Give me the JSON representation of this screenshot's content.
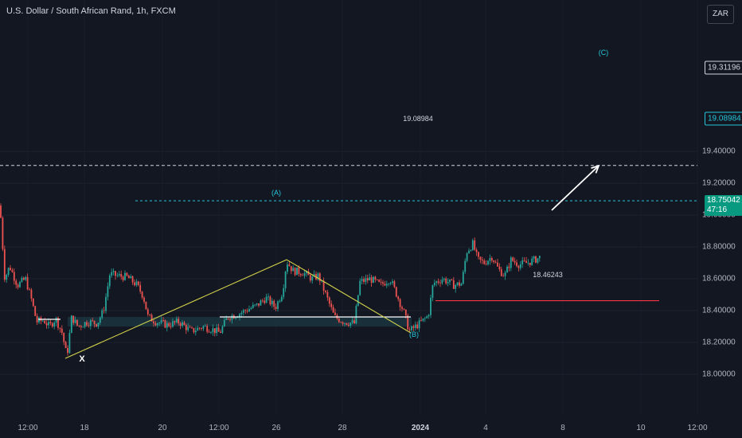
{
  "header": {
    "title": "U.S. Dollar / South African Rand, 1h, FXCM",
    "currency": "ZAR"
  },
  "price_tags": {
    "target_c": "19.31196",
    "target_line": "19.08984",
    "current": "18.75042",
    "countdown": "47:16"
  },
  "chart_data": {
    "type": "candlestick",
    "title": "U.S. Dollar / South African Rand, 1h, FXCM",
    "ylim": [
      17.92,
      19.52
    ],
    "y_ticks": [
      "19.40000",
      "19.20000",
      "19.00000",
      "18.80000",
      "18.60000",
      "18.40000",
      "18.20000",
      "18.00000"
    ],
    "y_tick_values": [
      19.4,
      19.2,
      19.0,
      18.8,
      18.6,
      18.4,
      18.2,
      18.0
    ],
    "x_ticks": [
      "12:00",
      "18",
      "20",
      "12:00",
      "26",
      "28",
      "2024",
      "4",
      "8",
      "10",
      "12:00"
    ],
    "price_path": [
      [
        0,
        19.06
      ],
      [
        6,
        18.6
      ],
      [
        12,
        18.68
      ],
      [
        22,
        18.56
      ],
      [
        32,
        18.6
      ],
      [
        40,
        18.46
      ],
      [
        46,
        18.33
      ],
      [
        55,
        18.34
      ],
      [
        62,
        18.3
      ],
      [
        70,
        18.35
      ],
      [
        78,
        18.26
      ],
      [
        84,
        18.11
      ],
      [
        90,
        18.36
      ],
      [
        98,
        18.3
      ],
      [
        110,
        18.33
      ],
      [
        122,
        18.32
      ],
      [
        130,
        18.4
      ],
      [
        138,
        18.63
      ],
      [
        146,
        18.62
      ],
      [
        160,
        18.61
      ],
      [
        172,
        18.56
      ],
      [
        180,
        18.49
      ],
      [
        186,
        18.36
      ],
      [
        196,
        18.33
      ],
      [
        210,
        18.31
      ],
      [
        225,
        18.33
      ],
      [
        240,
        18.27
      ],
      [
        255,
        18.3
      ],
      [
        268,
        18.28
      ],
      [
        276,
        18.26
      ],
      [
        286,
        18.36
      ],
      [
        300,
        18.38
      ],
      [
        312,
        18.41
      ],
      [
        322,
        18.43
      ],
      [
        334,
        18.48
      ],
      [
        346,
        18.42
      ],
      [
        355,
        18.52
      ],
      [
        360,
        18.71
      ],
      [
        368,
        18.65
      ],
      [
        380,
        18.64
      ],
      [
        392,
        18.6
      ],
      [
        400,
        18.62
      ],
      [
        410,
        18.49
      ],
      [
        420,
        18.36
      ],
      [
        432,
        18.33
      ],
      [
        445,
        18.32
      ],
      [
        452,
        18.58
      ],
      [
        465,
        18.6
      ],
      [
        478,
        18.56
      ],
      [
        490,
        18.6
      ],
      [
        500,
        18.48
      ],
      [
        508,
        18.38
      ],
      [
        514,
        18.27
      ],
      [
        522,
        18.3
      ],
      [
        532,
        18.34
      ],
      [
        538,
        18.37
      ],
      [
        544,
        18.57
      ],
      [
        556,
        18.6
      ],
      [
        570,
        18.56
      ],
      [
        580,
        18.57
      ],
      [
        586,
        18.77
      ],
      [
        594,
        18.82
      ],
      [
        600,
        18.72
      ],
      [
        608,
        18.7
      ],
      [
        618,
        18.74
      ],
      [
        626,
        18.66
      ],
      [
        634,
        18.62
      ],
      [
        642,
        18.72
      ],
      [
        652,
        18.69
      ],
      [
        662,
        18.7
      ],
      [
        672,
        18.72
      ],
      [
        680,
        18.74
      ]
    ],
    "waves": [
      {
        "label": "X",
        "value": 18.1
      },
      {
        "label": "(A)",
        "value": 18.72
      },
      {
        "label": "(B)",
        "value": 18.26
      },
      {
        "label": "(C)",
        "value": 19.31
      }
    ],
    "levels": [
      {
        "label": "19.08984",
        "value": 19.08984
      },
      {
        "label": "18.46243",
        "value": 18.46243
      },
      {
        "label": "19.31196",
        "value": 19.31196
      }
    ]
  }
}
